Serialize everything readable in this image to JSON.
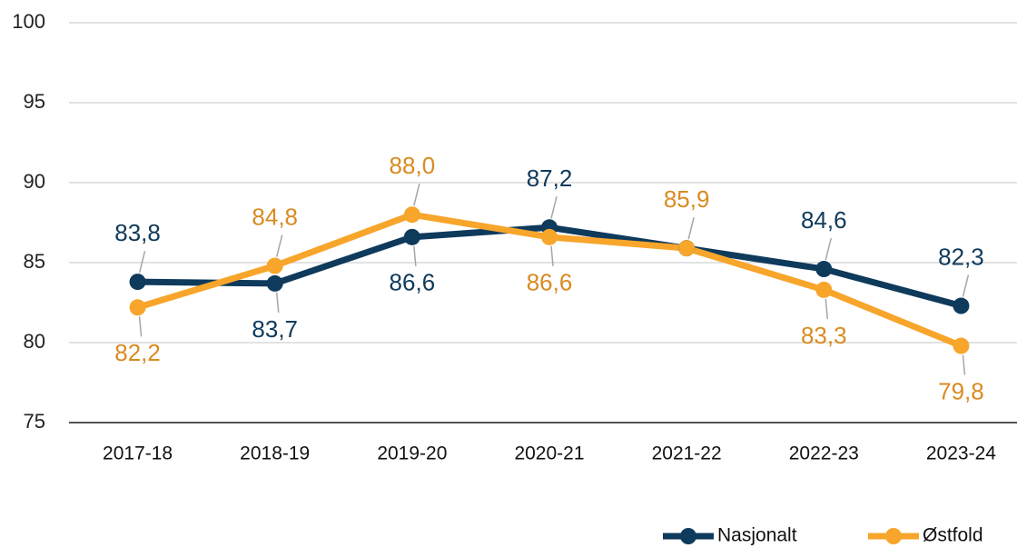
{
  "chart_data": {
    "type": "line",
    "categories": [
      "2017-18",
      "2018-19",
      "2019-20",
      "2020-21",
      "2021-22",
      "2022-23",
      "2023-24"
    ],
    "series": [
      {
        "name": "Nasjonalt",
        "color": "#0e3a5c",
        "label_color": "#0e3a5c",
        "values": [
          83.8,
          83.7,
          86.6,
          87.2,
          85.9,
          84.6,
          82.3
        ],
        "value_labels": [
          "83,8",
          "83,7",
          "86,6",
          "87,2",
          null,
          "84,6",
          "82,3"
        ]
      },
      {
        "name": "Østfold",
        "color": "#f7a52b",
        "label_color": "#d98b1f",
        "values": [
          82.2,
          84.8,
          88.0,
          86.6,
          85.9,
          83.3,
          79.8
        ],
        "value_labels": [
          "82,2",
          "84,8",
          "88,0",
          "86,6",
          "85,9",
          "83,3",
          "79,8"
        ]
      }
    ],
    "ylim": [
      75,
      100
    ],
    "yticks": [
      75,
      80,
      85,
      90,
      95,
      100
    ],
    "grid": true,
    "legend": "bottom-right"
  }
}
